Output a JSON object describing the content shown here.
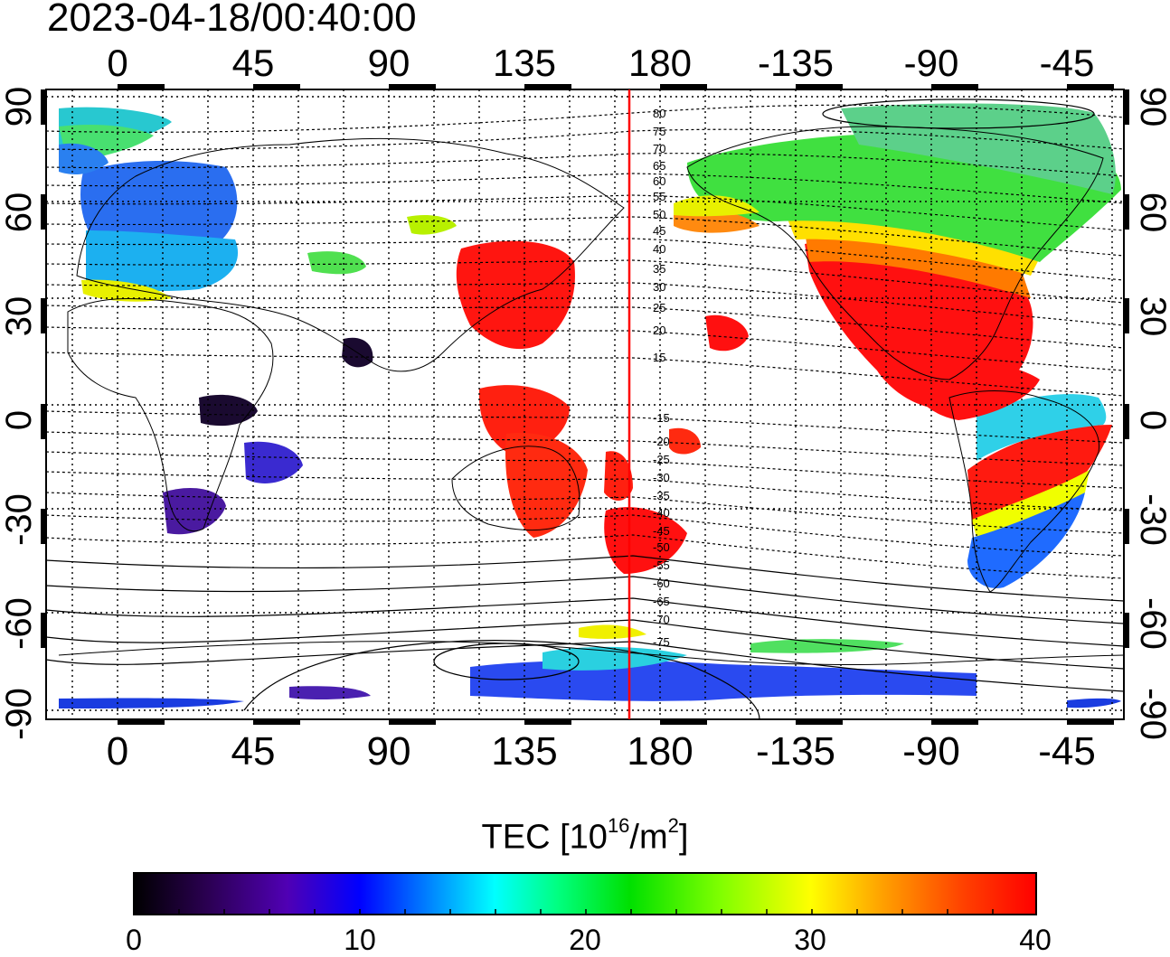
{
  "timestamp": "2023-04-18/00:40:00",
  "map": {
    "x_tick_labels": [
      "0",
      "45",
      "90",
      "135",
      "180",
      "-135",
      "-90",
      "-45"
    ],
    "y_tick_labels": [
      "90",
      "60",
      "30",
      "0",
      "-30",
      "-60",
      "-90"
    ],
    "grid": "dotted",
    "contour_labels": [
      "80",
      "75",
      "70",
      "65",
      "60",
      "55",
      "50",
      "45",
      "40",
      "35",
      "30",
      "25",
      "20",
      "15",
      "-15",
      "-20",
      "-25",
      "-30",
      "-35",
      "-40",
      "-45",
      "-50",
      "-55",
      "-60",
      "-65",
      "-70",
      "-75"
    ],
    "terminator_color": "#ff0000",
    "terminator_longitude": 170
  },
  "colorbar": {
    "title_main": "TEC  [10",
    "title_exp1": "16",
    "title_mid": "/m",
    "title_exp2": "2",
    "title_end": "]",
    "tick_labels": [
      "0",
      "10",
      "20",
      "30",
      "40"
    ],
    "range": [
      0,
      40
    ],
    "colors": [
      "#000000",
      "#2a0050",
      "#5000b4",
      "#0000ff",
      "#0088ff",
      "#00ffff",
      "#00ff80",
      "#00e000",
      "#80ff00",
      "#ffff00",
      "#ffa000",
      "#ff4000",
      "#ff0000"
    ]
  }
}
